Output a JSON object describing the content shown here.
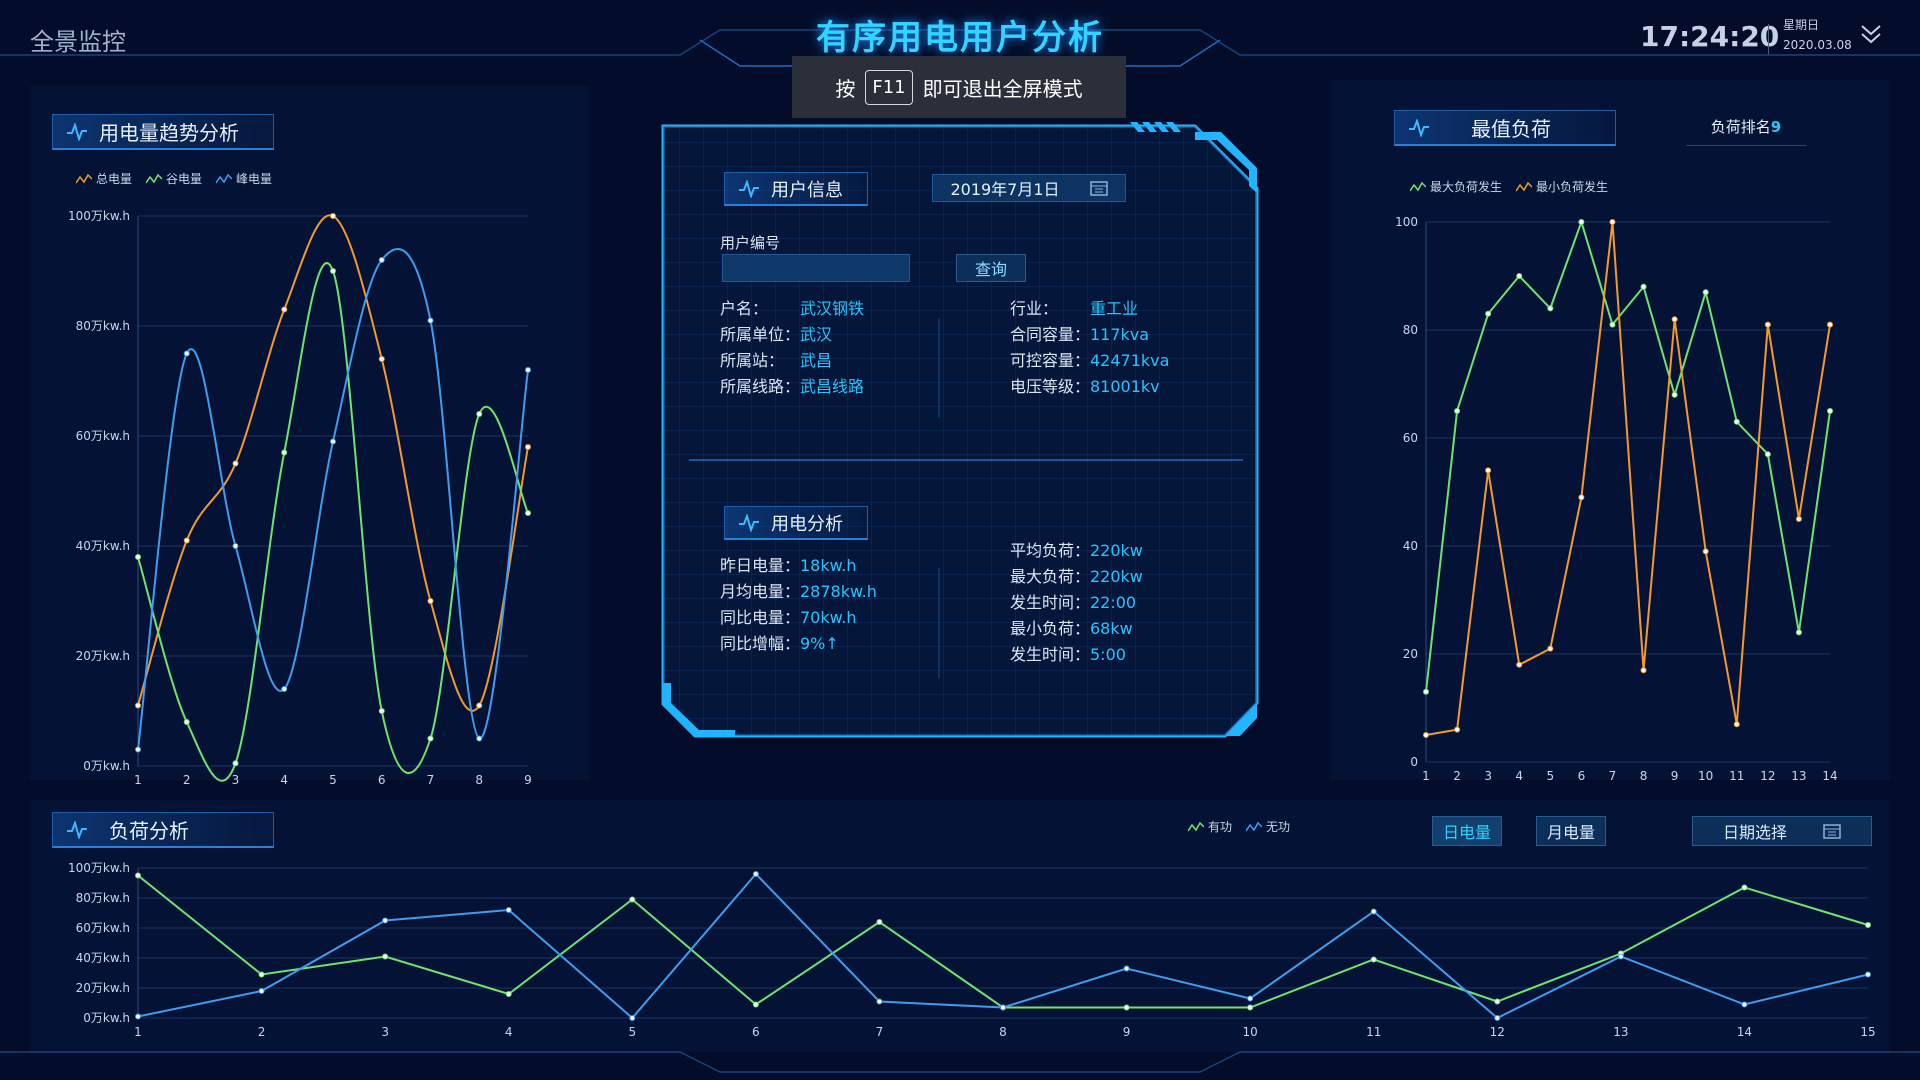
{
  "header": {
    "brand": "全景监控",
    "title": "有序用电用户分析",
    "fullscreen_tip_prefix": "按",
    "fullscreen_tip_key": "F11",
    "fullscreen_tip_suffix": "即可退出全屏模式",
    "time": "17:24:20",
    "weekday": "星期日",
    "date": "2020.03.08"
  },
  "left_panel": {
    "title": "用电量趋势分析",
    "legend": [
      "总电量",
      "谷电量",
      "峰电量"
    ]
  },
  "user_info": {
    "title": "用户信息",
    "date": "2019年7月1日",
    "user_no_label": "用户编号",
    "user_no_value": "",
    "query_button": "查询",
    "fields_left": [
      {
        "label": "户名：",
        "value": "武汉钢铁"
      },
      {
        "label": "所属单位：",
        "value": "武汉"
      },
      {
        "label": "所属站：",
        "value": "武昌"
      },
      {
        "label": "所属线路：",
        "value": "武昌线路"
      }
    ],
    "fields_right": [
      {
        "label": "行业：",
        "value": "重工业"
      },
      {
        "label": "合同容量：",
        "value": "117kva"
      },
      {
        "label": "可控容量：",
        "value": "42471kva"
      },
      {
        "label": "电压等级：",
        "value": "81001kv"
      }
    ]
  },
  "power_analysis": {
    "title": "用电分析",
    "fields_left": [
      {
        "label": "昨日电量：",
        "value": "18kw.h"
      },
      {
        "label": "月均电量：",
        "value": "2878kw.h"
      },
      {
        "label": "同比电量：",
        "value": "70kw.h"
      },
      {
        "label": "同比增幅：",
        "value": "9%↑"
      }
    ],
    "fields_right": [
      {
        "label": "平均负荷：",
        "value": "220kw"
      },
      {
        "label": "最大负荷：",
        "value": "220kw"
      },
      {
        "label": "发生时间：",
        "value": "22:00"
      },
      {
        "label": "最小负荷：",
        "value": "68kw"
      },
      {
        "label": "发生时间：",
        "value": "5:00"
      }
    ]
  },
  "right_panel": {
    "title": "最值负荷",
    "rank_label": "负荷排名",
    "rank_value": "9",
    "legend": [
      "最大负荷发生",
      "最小负荷发生"
    ]
  },
  "bottom_panel": {
    "title": "负荷分析",
    "legend": [
      "有功",
      "无功"
    ],
    "btn_day": "日电量",
    "btn_month": "月电量",
    "date_select": "日期选择"
  },
  "colors": {
    "orange": "#f39a2b",
    "green": "#6fe36f",
    "blue": "#3f9cf0",
    "accent": "#23c6ff"
  },
  "chart_data": [
    {
      "type": "line",
      "x": [
        1,
        2,
        3,
        4,
        5,
        6,
        7,
        8,
        9
      ],
      "ylim": [
        0,
        100
      ],
      "y_ticks": [
        "0万kw.h",
        "20万kw.h",
        "40万kw.h",
        "60万kw.h",
        "80万kw.h",
        "100万kw.h"
      ],
      "series": [
        {
          "name": "总电量",
          "color": "#f39a2b",
          "values": [
            11,
            41,
            55,
            83,
            100,
            74,
            30,
            11,
            58
          ]
        },
        {
          "name": "谷电量",
          "color": "#6fe36f",
          "values": [
            38,
            8,
            0.5,
            57,
            90,
            10,
            5,
            64,
            46
          ]
        },
        {
          "name": "峰电量",
          "color": "#3f9cf0",
          "values": [
            3,
            75,
            40,
            14,
            59,
            92,
            81,
            5,
            72
          ]
        }
      ],
      "smooth": true
    },
    {
      "type": "line",
      "x": [
        1,
        2,
        3,
        4,
        5,
        6,
        7,
        8,
        9,
        10,
        11,
        12,
        13,
        14
      ],
      "ylim": [
        0,
        100
      ],
      "y_ticks": [
        "0",
        "20",
        "40",
        "60",
        "80",
        "100"
      ],
      "series": [
        {
          "name": "最大负荷发生",
          "color": "#6fe36f",
          "values": [
            13,
            65,
            83,
            90,
            84,
            100,
            81,
            88,
            68,
            87,
            63,
            57,
            24,
            65
          ]
        },
        {
          "name": "最小负荷发生",
          "color": "#f39a2b",
          "values": [
            5,
            6,
            54,
            18,
            21,
            49,
            100,
            17,
            82,
            39,
            7,
            81,
            45,
            81
          ]
        }
      ]
    },
    {
      "type": "line",
      "x": [
        1,
        2,
        3,
        4,
        5,
        6,
        7,
        8,
        9,
        10,
        11,
        12,
        13,
        14,
        15
      ],
      "ylim": [
        0,
        100
      ],
      "y_ticks": [
        "0万kw.h",
        "20万kw.h",
        "40万kw.h",
        "60万kw.h",
        "80万kw.h",
        "100万kw.h"
      ],
      "series": [
        {
          "name": "有功",
          "color": "#6fe36f",
          "values": [
            95,
            29,
            41,
            16,
            79,
            9,
            64,
            7,
            7,
            7,
            39,
            11,
            43,
            87,
            62
          ]
        },
        {
          "name": "无功",
          "color": "#3f9cf0",
          "values": [
            1,
            18,
            65,
            72,
            0,
            96,
            11,
            7,
            33,
            13,
            71,
            0,
            41,
            9,
            29
          ]
        }
      ]
    }
  ]
}
